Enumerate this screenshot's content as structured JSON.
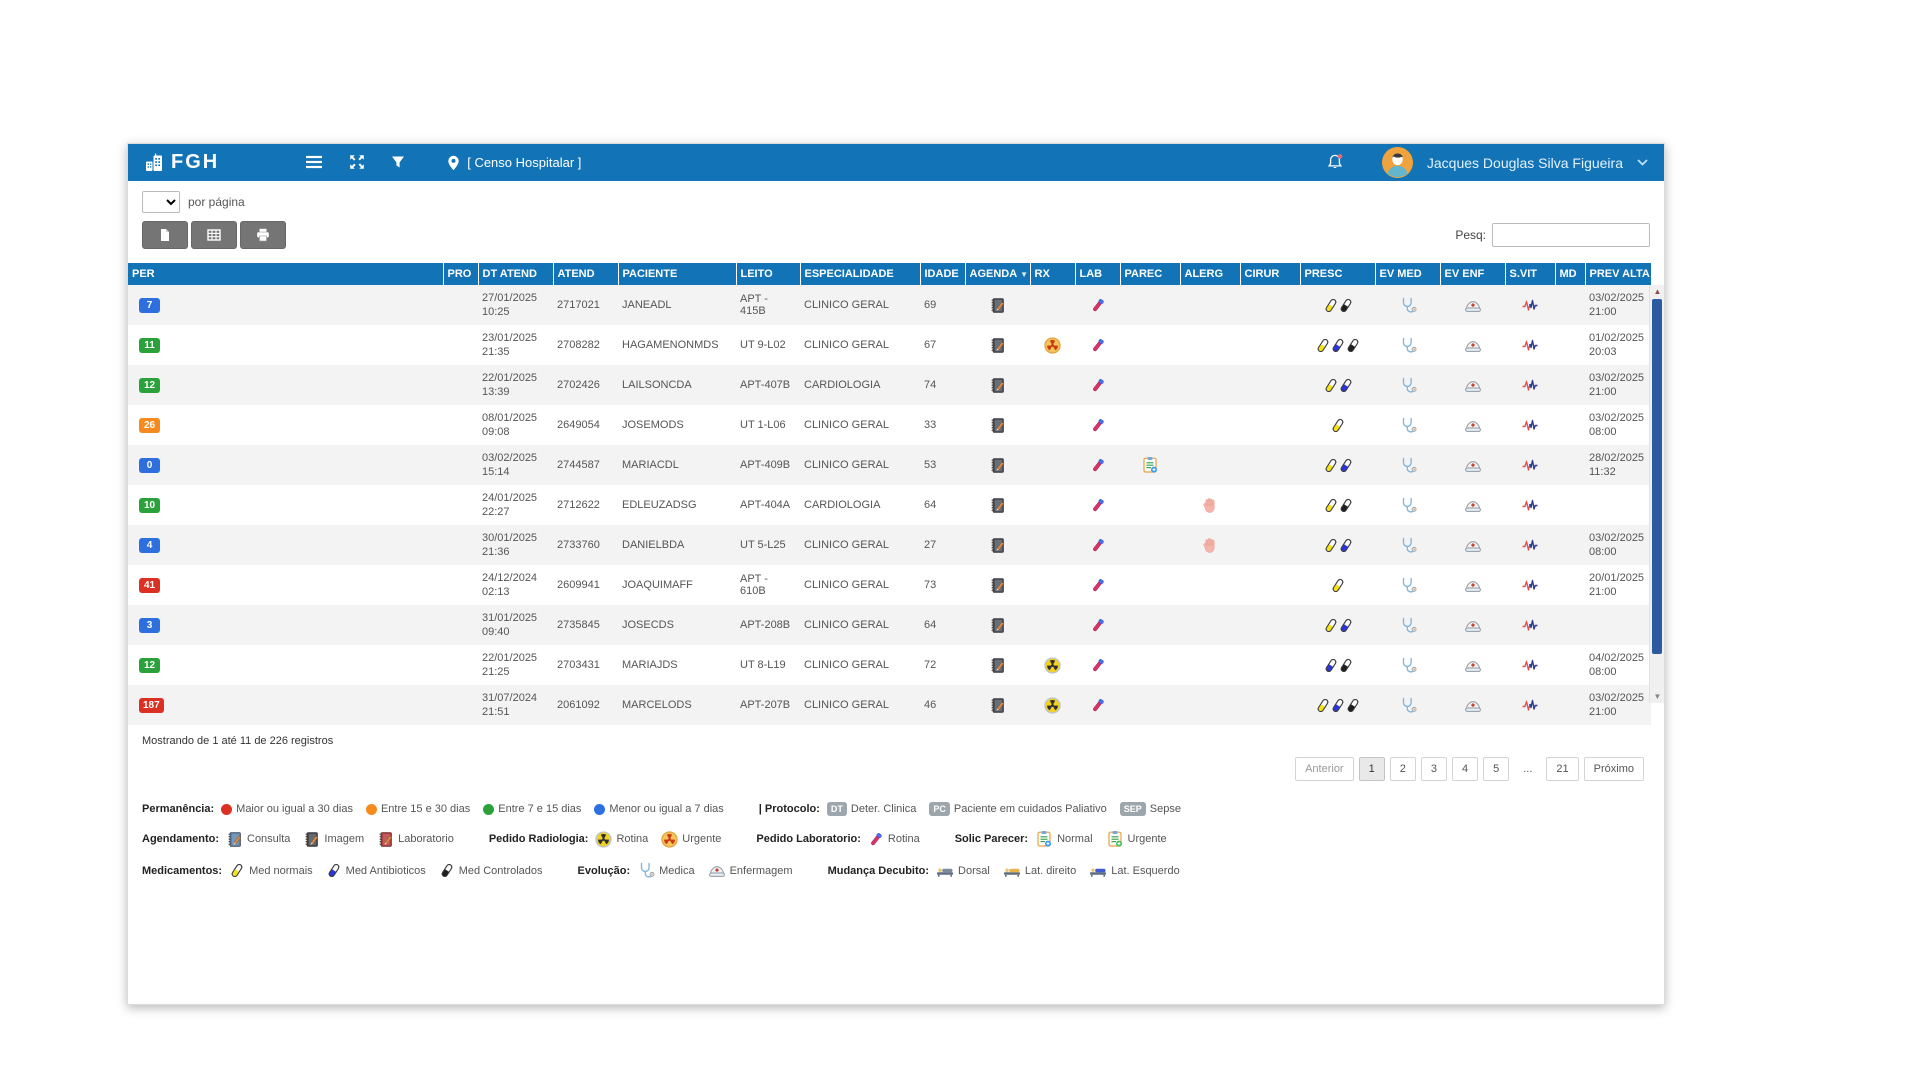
{
  "header": {
    "logo_text": "FGH",
    "title": "[ Censo Hospitalar ]",
    "user_name": "Jacques Douglas Silva Figueira",
    "appbar_color": "#1273b6"
  },
  "toolbar": {
    "per_page_label": "por página",
    "per_page_value": "",
    "search_label": "Pesq:",
    "search_value": ""
  },
  "table": {
    "columns": [
      "PER",
      "PRO",
      "DT ATEND",
      "ATEND",
      "PACIENTE",
      "LEITO",
      "ESPECIALIDADE",
      "IDADE",
      "AGENDA",
      "RX",
      "LAB",
      "PAREC",
      "ALERG",
      "CIRUR",
      "PRESC",
      "EV MED",
      "EV ENF",
      "S.VIT",
      "MD",
      "PREV ALTA"
    ],
    "sorted_by": "AGENDA",
    "rows": [
      {
        "per": "7",
        "per_color": "blue",
        "dt_date": "27/01/2025",
        "dt_time": "10:25",
        "atend": "2717021",
        "paciente": "JANEADL",
        "leito": "APT - 415B",
        "especialidade": "CLINICO GERAL",
        "idade": "69",
        "agenda": true,
        "rx": null,
        "lab": true,
        "parec": false,
        "alerg": false,
        "cirur": false,
        "presc": [
          "yellow",
          "black"
        ],
        "ev_med": true,
        "ev_enf": true,
        "s_vit": true,
        "md": false,
        "prev_date": "03/02/2025",
        "prev_time": "21:00"
      },
      {
        "per": "11",
        "per_color": "green",
        "dt_date": "23/01/2025",
        "dt_time": "21:35",
        "atend": "2708282",
        "paciente": "HAGAMENONMDS",
        "leito": "UT 9-L02",
        "especialidade": "CLINICO GERAL",
        "idade": "67",
        "agenda": true,
        "rx": "urgente",
        "lab": true,
        "parec": false,
        "alerg": false,
        "cirur": false,
        "presc": [
          "yellow",
          "blue",
          "black"
        ],
        "ev_med": true,
        "ev_enf": true,
        "s_vit": true,
        "md": false,
        "prev_date": "01/02/2025",
        "prev_time": "20:03"
      },
      {
        "per": "12",
        "per_color": "green",
        "dt_date": "22/01/2025",
        "dt_time": "13:39",
        "atend": "2702426",
        "paciente": "LAILSONCDA",
        "leito": "APT-407B",
        "especialidade": "CARDIOLOGIA",
        "idade": "74",
        "agenda": true,
        "rx": null,
        "lab": true,
        "parec": false,
        "alerg": false,
        "cirur": false,
        "presc": [
          "yellow",
          "blue"
        ],
        "ev_med": true,
        "ev_enf": true,
        "s_vit": true,
        "md": false,
        "prev_date": "03/02/2025",
        "prev_time": "21:00"
      },
      {
        "per": "26",
        "per_color": "orange",
        "dt_date": "08/01/2025",
        "dt_time": "09:08",
        "atend": "2649054",
        "paciente": "JOSEMODS",
        "leito": "UT 1-L06",
        "especialidade": "CLINICO GERAL",
        "idade": "33",
        "agenda": true,
        "rx": null,
        "lab": true,
        "parec": false,
        "alerg": false,
        "cirur": false,
        "presc": [
          "yellow"
        ],
        "ev_med": true,
        "ev_enf": true,
        "s_vit": true,
        "md": false,
        "prev_date": "03/02/2025",
        "prev_time": "08:00"
      },
      {
        "per": "0",
        "per_color": "blue",
        "dt_date": "03/02/2025",
        "dt_time": "15:14",
        "atend": "2744587",
        "paciente": "MARIACDL",
        "leito": "APT-409B",
        "especialidade": "CLINICO GERAL",
        "idade": "53",
        "agenda": true,
        "rx": null,
        "lab": true,
        "parec": true,
        "alerg": false,
        "cirur": false,
        "presc": [
          "yellow",
          "blue"
        ],
        "ev_med": true,
        "ev_enf": true,
        "s_vit": true,
        "md": false,
        "prev_date": "28/02/2025",
        "prev_time": "11:32"
      },
      {
        "per": "10",
        "per_color": "green",
        "dt_date": "24/01/2025",
        "dt_time": "22:27",
        "atend": "2712622",
        "paciente": "EDLEUZADSG",
        "leito": "APT-404A",
        "especialidade": "CARDIOLOGIA",
        "idade": "64",
        "agenda": true,
        "rx": null,
        "lab": true,
        "parec": false,
        "alerg": true,
        "cirur": false,
        "presc": [
          "yellow",
          "black"
        ],
        "ev_med": true,
        "ev_enf": true,
        "s_vit": true,
        "md": false,
        "prev_date": "",
        "prev_time": ""
      },
      {
        "per": "4",
        "per_color": "blue",
        "dt_date": "30/01/2025",
        "dt_time": "21:36",
        "atend": "2733760",
        "paciente": "DANIELBDA",
        "leito": "UT 5-L25",
        "especialidade": "CLINICO GERAL",
        "idade": "27",
        "agenda": true,
        "rx": null,
        "lab": true,
        "parec": false,
        "alerg": true,
        "cirur": false,
        "presc": [
          "yellow",
          "blue"
        ],
        "ev_med": true,
        "ev_enf": true,
        "s_vit": true,
        "md": false,
        "prev_date": "03/02/2025",
        "prev_time": "08:00"
      },
      {
        "per": "41",
        "per_color": "red",
        "dt_date": "24/12/2024",
        "dt_time": "02:13",
        "atend": "2609941",
        "paciente": "JOAQUIMAFF",
        "leito": "APT - 610B",
        "especialidade": "CLINICO GERAL",
        "idade": "73",
        "agenda": true,
        "rx": null,
        "lab": true,
        "parec": false,
        "alerg": false,
        "cirur": false,
        "presc": [
          "yellow"
        ],
        "ev_med": true,
        "ev_enf": true,
        "s_vit": true,
        "md": false,
        "prev_date": "20/01/2025",
        "prev_time": "21:00"
      },
      {
        "per": "3",
        "per_color": "blue",
        "dt_date": "31/01/2025",
        "dt_time": "09:40",
        "atend": "2735845",
        "paciente": "JOSECDS",
        "leito": "APT-208B",
        "especialidade": "CLINICO GERAL",
        "idade": "64",
        "agenda": true,
        "rx": null,
        "lab": true,
        "parec": false,
        "alerg": false,
        "cirur": false,
        "presc": [
          "yellow",
          "blue"
        ],
        "ev_med": true,
        "ev_enf": true,
        "s_vit": true,
        "md": false,
        "prev_date": "",
        "prev_time": ""
      },
      {
        "per": "12",
        "per_color": "green",
        "dt_date": "22/01/2025",
        "dt_time": "21:25",
        "atend": "2703431",
        "paciente": "MARIAJDS",
        "leito": "UT 8-L19",
        "especialidade": "CLINICO GERAL",
        "idade": "72",
        "agenda": true,
        "rx": "rotina",
        "lab": true,
        "parec": false,
        "alerg": false,
        "cirur": false,
        "presc": [
          "blue",
          "black"
        ],
        "ev_med": true,
        "ev_enf": true,
        "s_vit": true,
        "md": false,
        "prev_date": "04/02/2025",
        "prev_time": "08:00"
      },
      {
        "per": "187",
        "per_color": "red",
        "dt_date": "31/07/2024",
        "dt_time": "21:51",
        "atend": "2061092",
        "paciente": "MARCELODS",
        "leito": "APT-207B",
        "especialidade": "CLINICO GERAL",
        "idade": "46",
        "agenda": true,
        "rx": "rotina",
        "lab": true,
        "parec": false,
        "alerg": false,
        "cirur": false,
        "presc": [
          "yellow",
          "blue",
          "black"
        ],
        "ev_med": true,
        "ev_enf": true,
        "s_vit": true,
        "md": false,
        "prev_date": "03/02/2025",
        "prev_time": "21:00"
      }
    ]
  },
  "footer": {
    "showing_text": "Mostrando de 1 até 11 de 226 registros",
    "pagination": {
      "prev": "Anterior",
      "pages": [
        "1",
        "2",
        "3",
        "4",
        "5",
        "...",
        "21"
      ],
      "active": "1",
      "next": "Próximo"
    }
  },
  "colors": {
    "per_blue": "#2e6fe0",
    "per_green": "#2aa13a",
    "per_orange": "#f58b1f",
    "per_red": "#dc3023",
    "appbar": "#1273b6"
  },
  "legend": {
    "lines": [
      [
        {
          "label": "Permanência:",
          "items": [
            {
              "dot": "#dc3023",
              "text": "Maior ou igual a 30 dias"
            },
            {
              "dot": "#f58b1f",
              "text": "Entre 15 e 30 dias"
            },
            {
              "dot": "#2aa13a",
              "text": "Entre 7 e 15 dias"
            },
            {
              "dot": "#2e6fe0",
              "text": "Menor ou igual a 7 dias"
            }
          ]
        },
        {
          "label": "| Protocolo:",
          "items": [
            {
              "badge": "DT",
              "text": "Deter. Clinica"
            },
            {
              "badge": "PC",
              "text": "Paciente em cuidados Paliativo"
            },
            {
              "badge": "SEP",
              "text": "Sepse"
            }
          ]
        }
      ],
      [
        {
          "label": "Agendamento:",
          "items": [
            {
              "icon": "notebook-blue",
              "text": "Consulta"
            },
            {
              "icon": "notebook-dark",
              "text": "Imagem"
            },
            {
              "icon": "notebook-red",
              "text": "Laboratorio"
            }
          ]
        },
        {
          "label": "Pedido Radiologia:",
          "items": [
            {
              "icon": "rx-rotina",
              "text": "Rotina"
            },
            {
              "icon": "rx-urgente",
              "text": "Urgente"
            }
          ]
        },
        {
          "label": "Pedido Laboratorio:",
          "items": [
            {
              "icon": "lab-tube",
              "text": "Rotina"
            }
          ]
        },
        {
          "label": "Solic Parecer:",
          "items": [
            {
              "icon": "clipboard-blue",
              "text": "Normal"
            },
            {
              "icon": "clipboard-green",
              "text": "Urgente"
            }
          ]
        }
      ],
      [
        {
          "label": "Medicamentos:",
          "items": [
            {
              "icon": "pill-yellow",
              "text": "Med normais"
            },
            {
              "icon": "pill-blue",
              "text": "Med Antibioticos"
            },
            {
              "icon": "pill-black",
              "text": "Med Controlados"
            }
          ]
        },
        {
          "label": "Evolução:",
          "items": [
            {
              "icon": "stethoscope",
              "text": "Medica"
            },
            {
              "icon": "nurse-cap",
              "text": "Enfermagem"
            }
          ]
        },
        {
          "label": "Mudança Decubito:",
          "items": [
            {
              "icon": "bed-dorsal",
              "text": "Dorsal"
            },
            {
              "icon": "bed-right",
              "text": "Lat. direito"
            },
            {
              "icon": "bed-left",
              "text": "Lat. Esquerdo"
            }
          ]
        }
      ]
    ]
  }
}
